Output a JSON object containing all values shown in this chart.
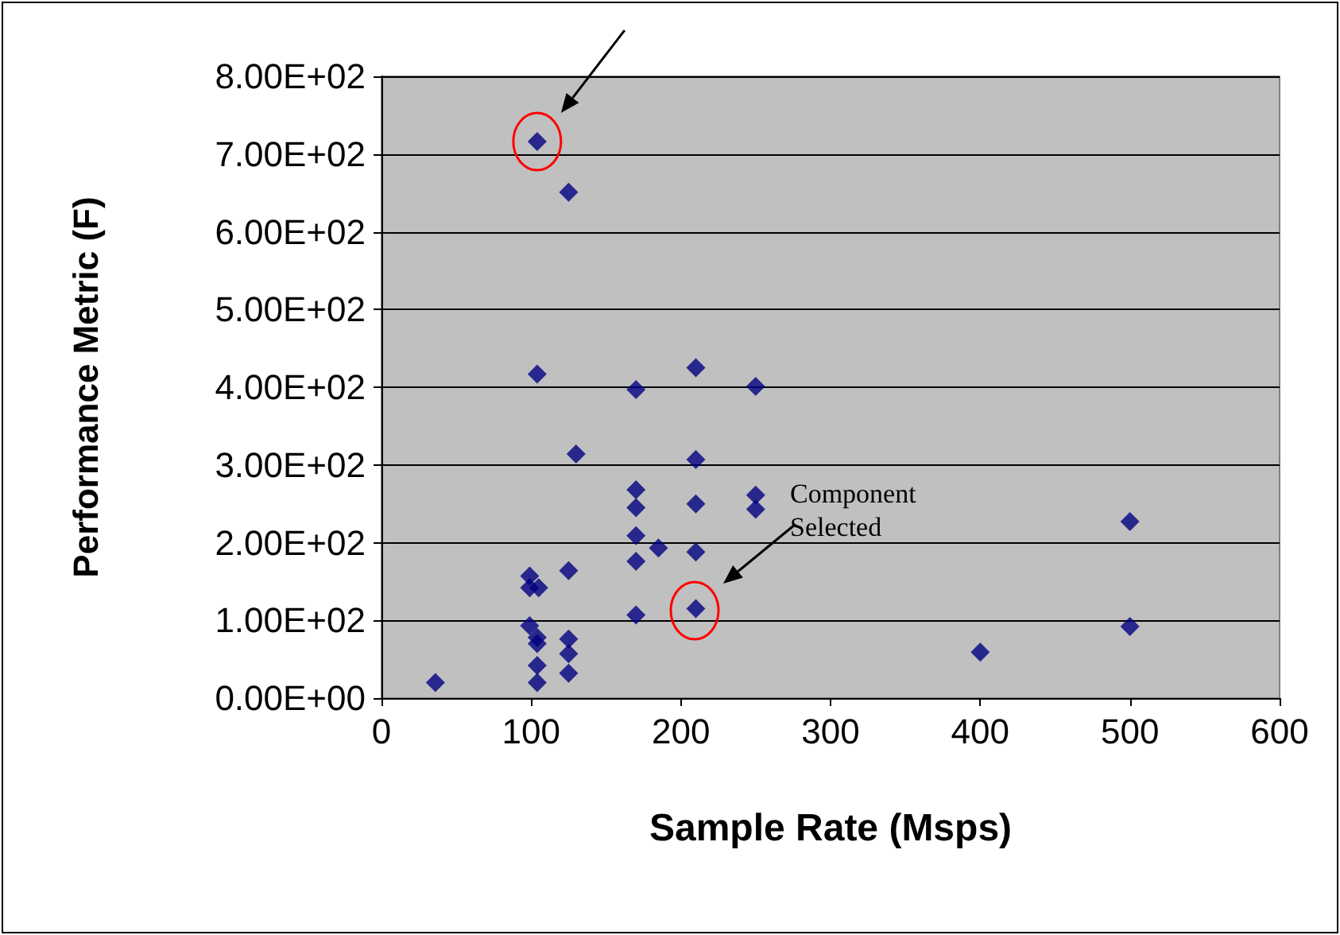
{
  "chart_data": {
    "type": "scatter",
    "xlabel": "Sample Rate (Msps)",
    "ylabel": "Performance Metric (F)",
    "series": [
      {
        "color": "#000080",
        "x": [
          104,
          125,
          36,
          104,
          170,
          210,
          250,
          130,
          210,
          170,
          170,
          210,
          250,
          250,
          170,
          185,
          210,
          170,
          125,
          99,
          99,
          105,
          210,
          170,
          99,
          104,
          104,
          125,
          125,
          104,
          125,
          104,
          400,
          500,
          500
        ],
        "values": [
          716,
          651,
          20,
          417,
          397,
          425,
          401,
          314,
          307,
          268,
          245,
          250,
          261,
          243,
          209,
          193,
          188,
          176,
          164,
          157,
          142,
          142,
          115,
          107,
          93,
          78,
          70,
          76,
          57,
          42,
          32,
          20,
          59,
          92,
          227
        ]
      }
    ],
    "xlim": [
      0,
      600
    ],
    "xticks": [
      0,
      100,
      200,
      300,
      400,
      500,
      600
    ],
    "ylim": [
      0,
      800
    ],
    "yticks": [
      {
        "value": 0,
        "label": "0.00E+00"
      },
      {
        "value": 100,
        "label": "1.00E+02"
      },
      {
        "value": 200,
        "label": "2.00E+02"
      },
      {
        "value": 300,
        "label": "3.00E+02"
      },
      {
        "value": 400,
        "label": "4.00E+02"
      },
      {
        "value": 500,
        "label": "5.00E+02"
      },
      {
        "value": 600,
        "label": "6.00E+02"
      },
      {
        "value": 700,
        "label": "7.00E+02"
      },
      {
        "value": 800,
        "label": "8.00E+02"
      }
    ],
    "annotations": [
      "Component Selected"
    ],
    "grid": "y",
    "marker": "diamond"
  }
}
